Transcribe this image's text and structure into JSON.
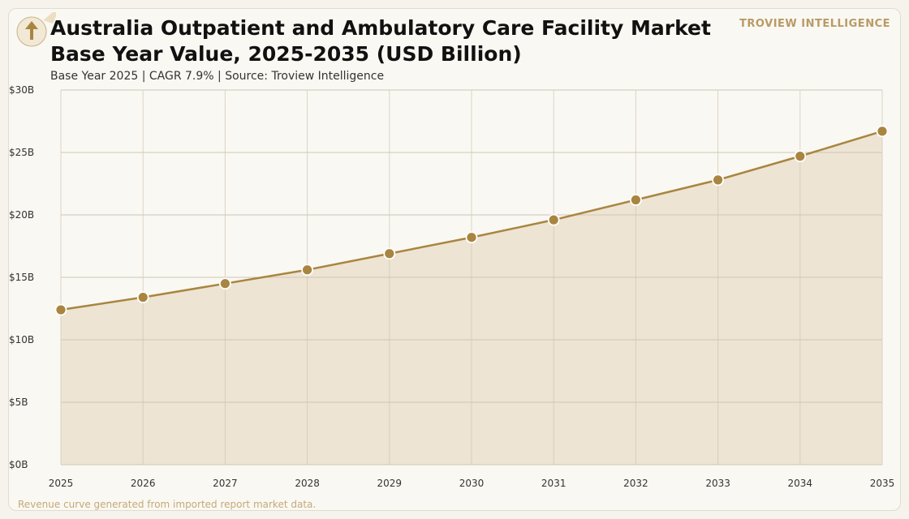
{
  "header": {
    "title_line1": "Australia Outpatient and Ambulatory Care Facility Market",
    "title_line2": "Base Year Value, 2025-2035 (USD Billion)",
    "subtitle": "Base Year 2025 | CAGR 7.9% | Source: Troview Intelligence",
    "brand": "TROVIEW INTELLIGENCE"
  },
  "footnote": "Revenue curve generated from imported report market data.",
  "colors": {
    "line": "#a98540",
    "marker": "#a98540",
    "area": "#ede4d3",
    "grid": "#cfc6b5",
    "brand": "#b99a66"
  },
  "icons": {
    "logo": "upward-arrow-icon"
  },
  "chart_data": {
    "type": "area",
    "title": "Australia Outpatient and Ambulatory Care Facility Market Base Year Value, 2025-2035 (USD Billion)",
    "x": [
      "2025",
      "2026",
      "2027",
      "2028",
      "2029",
      "2030",
      "2031",
      "2032",
      "2033",
      "2034",
      "2035"
    ],
    "series": [
      {
        "values": [
          12.4,
          13.4,
          14.5,
          15.6,
          16.9,
          18.2,
          19.6,
          21.2,
          22.8,
          24.7,
          26.7
        ]
      }
    ],
    "ylim": [
      0,
      30
    ],
    "yticks": [
      0,
      5,
      10,
      15,
      20,
      25,
      30
    ],
    "ytick_labels": [
      "$0B",
      "$5B",
      "$10B",
      "$15B",
      "$20B",
      "$25B",
      "$30B"
    ],
    "xlabel": "",
    "ylabel": "",
    "grid": true,
    "markers": true
  }
}
